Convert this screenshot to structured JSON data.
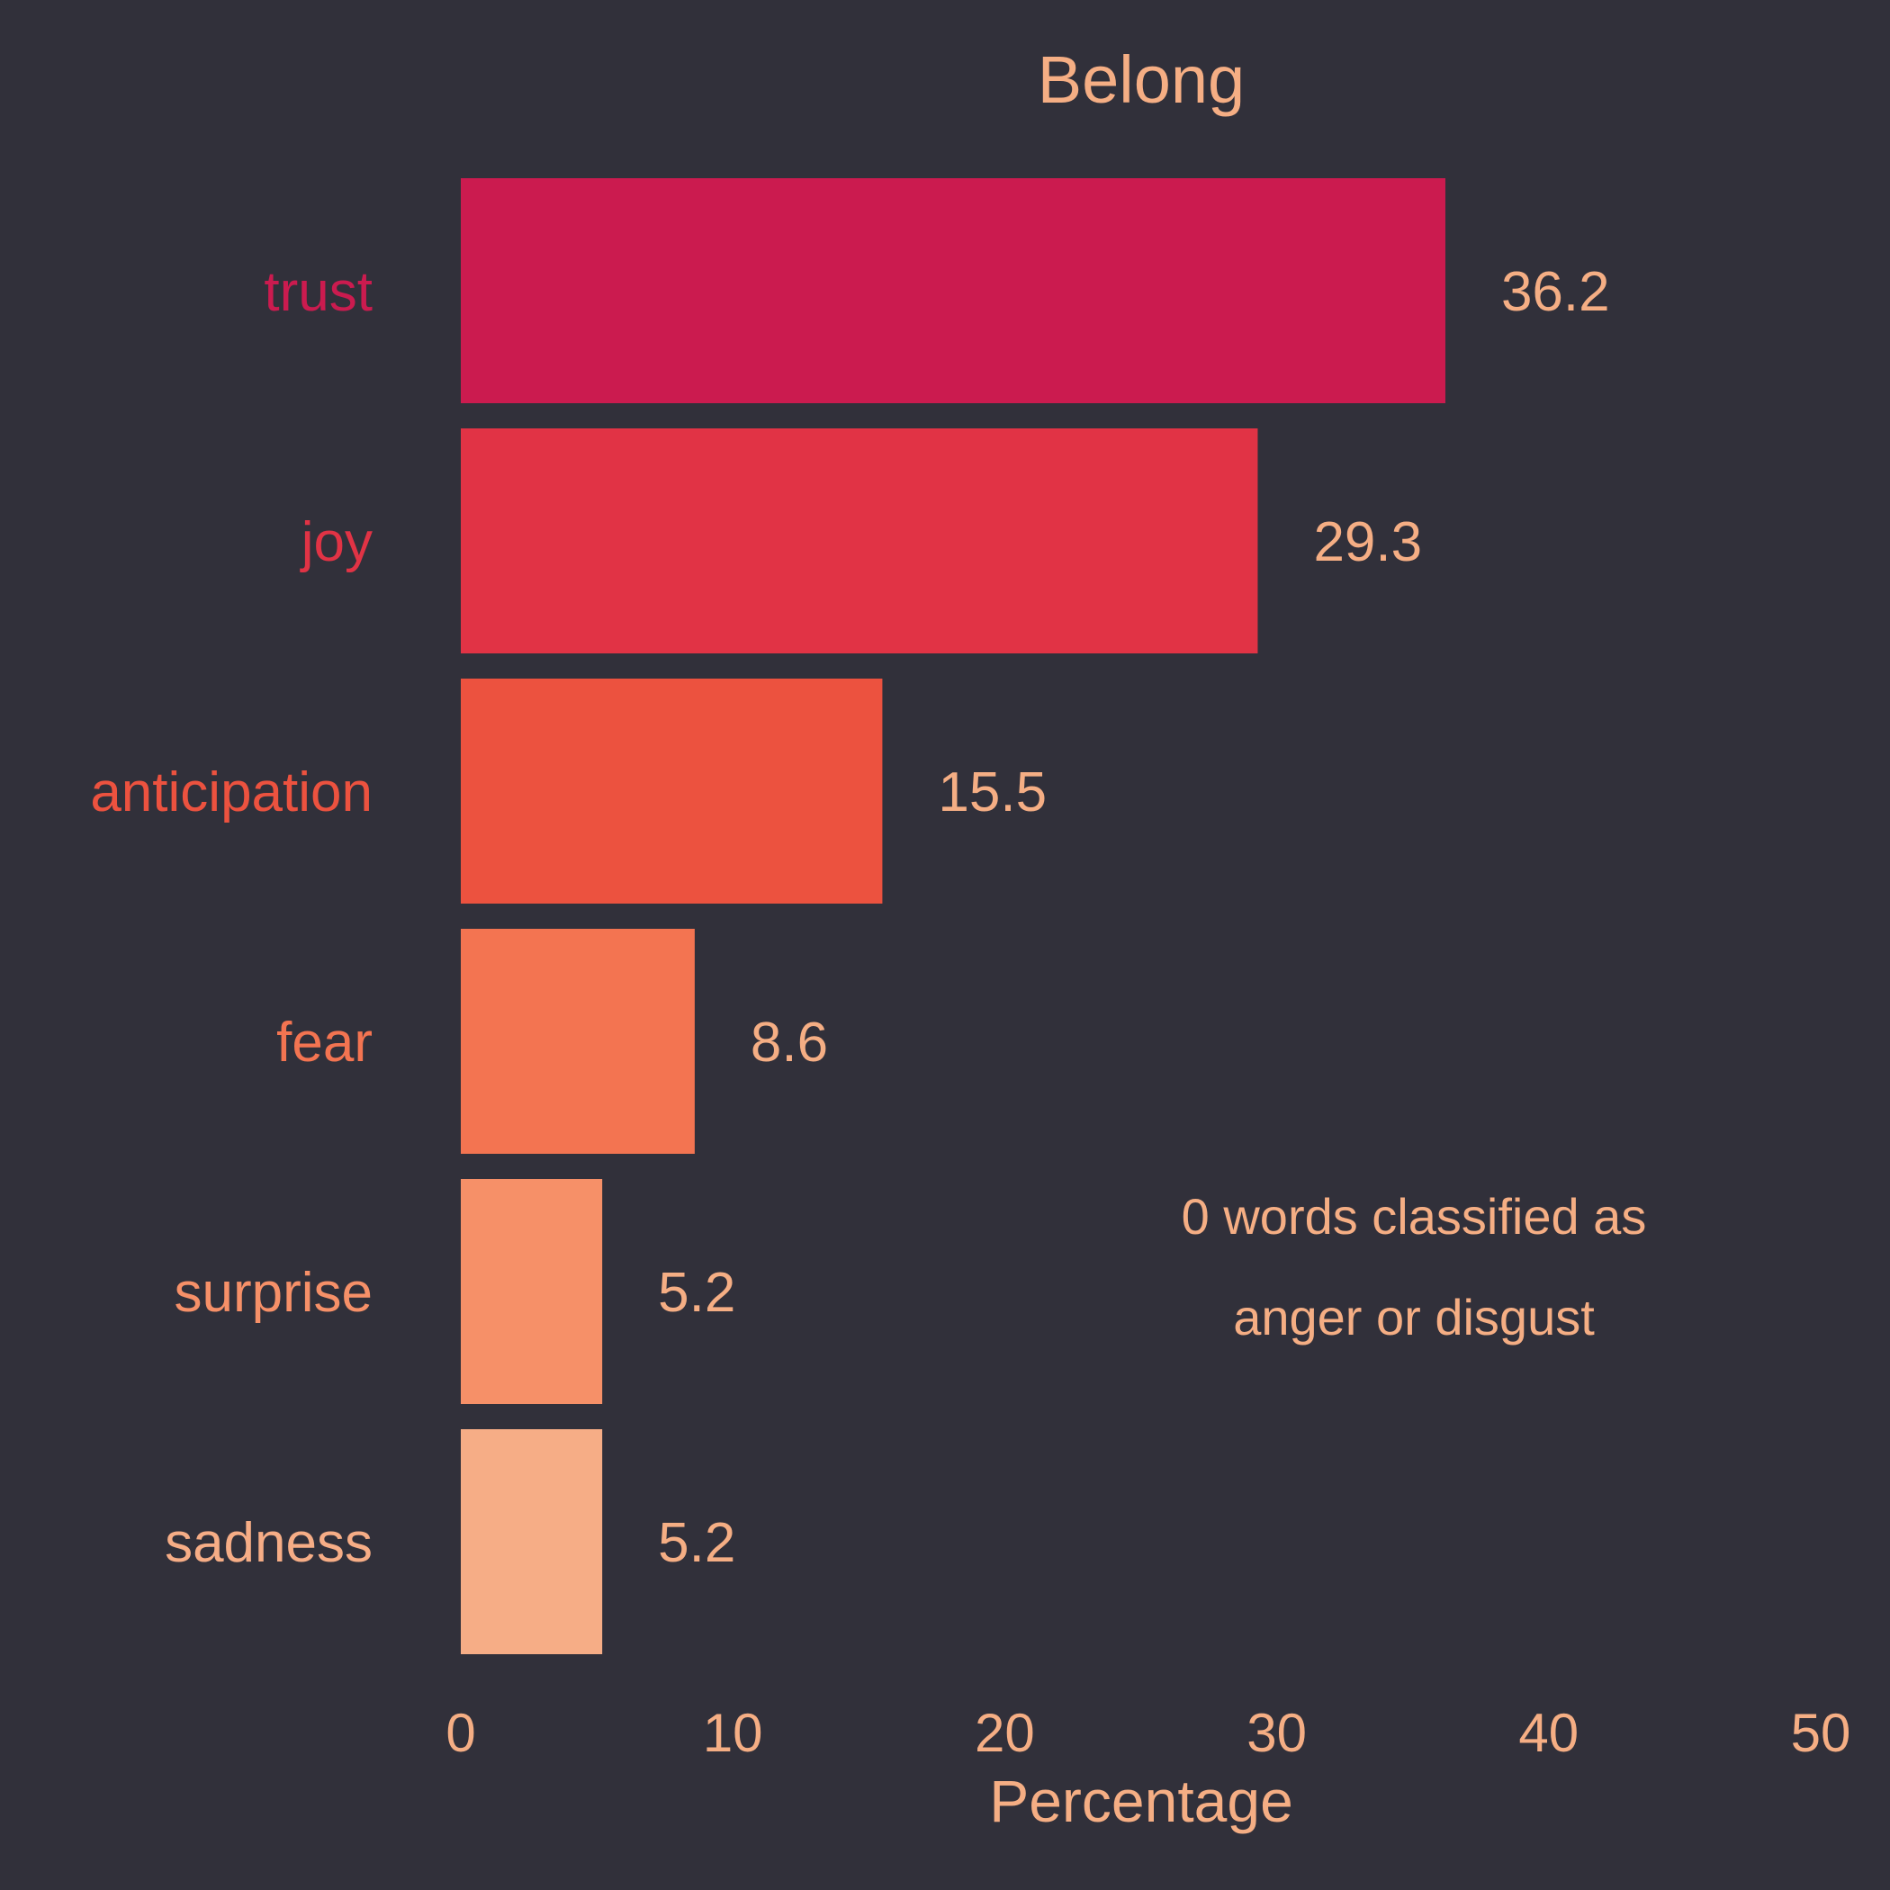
{
  "chart_data": {
    "type": "bar",
    "orientation": "horizontal",
    "title": "Belong",
    "xlabel": "Percentage",
    "ylabel": "",
    "xlim": [
      0,
      50
    ],
    "xticks": [
      "0",
      "10",
      "20",
      "30",
      "40",
      "50"
    ],
    "categories": [
      "trust",
      "joy",
      "anticipation",
      "fear",
      "surprise",
      "sadness"
    ],
    "values": [
      36.2,
      29.3,
      15.5,
      8.6,
      5.2,
      5.2
    ],
    "value_labels": [
      "36.2",
      "29.3",
      "15.5",
      "8.6",
      "5.2",
      "5.2"
    ],
    "bar_colors": [
      "#cb1b4f",
      "#e13345",
      "#ec523f",
      "#f37451",
      "#f69068",
      "#f6ad86"
    ],
    "annotation": [
      "0 words classified as",
      "anger or disgust"
    ],
    "grid": false,
    "legend": "none"
  },
  "theme": {
    "background": "#31303a",
    "text_color": "#f5ae84"
  }
}
